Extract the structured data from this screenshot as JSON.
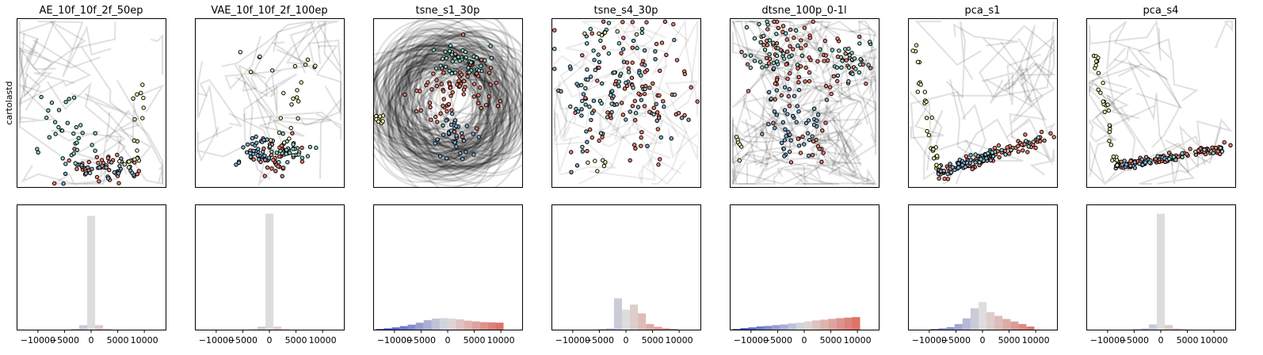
{
  "figure": {
    "row_label": "cartolastd",
    "colors": {
      "yellow": "#ffffb3",
      "teal": "#8dd3c7",
      "red": "#fb8072",
      "blue": "#80b1d3",
      "lavender": "#bebada",
      "trail": "#000000",
      "hist_mid": "#dddddd",
      "hist_blue": "#3b4cc0",
      "hist_red": "#dd5a4e"
    }
  },
  "chart_data": [
    {
      "type": "scatter",
      "title": "AE_10f_10f_2f_50ep",
      "xticks": [],
      "yticks": [],
      "trails": "light",
      "histogram": {
        "type": "bar",
        "bin_centers": [
          -12000,
          -10500,
          -9000,
          -7500,
          -6000,
          -4500,
          -3000,
          -1500,
          0,
          1500,
          3000,
          4500,
          6000,
          7500,
          9000,
          10500,
          12000
        ],
        "values": [
          0,
          0,
          0,
          0,
          0,
          0,
          0.5,
          4,
          100,
          4,
          0.5,
          0,
          0,
          0,
          0,
          0,
          0
        ],
        "xticks": [
          "−10000",
          "−5000",
          "0",
          "5000",
          "10000"
        ],
        "xtick_values": [
          -10000,
          -5000,
          0,
          5000,
          10000
        ],
        "xlim": [
          -14000,
          14000
        ],
        "ylim": [
          0,
          110
        ]
      }
    },
    {
      "type": "scatter",
      "title": "VAE_10f_10f_2f_100ep",
      "xticks": [],
      "yticks": [],
      "trails": "light",
      "histogram": {
        "type": "bar",
        "bin_centers": [
          -12000,
          -10500,
          -9000,
          -7500,
          -6000,
          -4500,
          -3000,
          -1500,
          0,
          1500,
          3000,
          4500,
          6000,
          7500,
          9000,
          10500,
          12000
        ],
        "values": [
          0,
          0,
          0,
          0,
          0,
          0,
          0.3,
          2.5,
          100,
          2.5,
          0.3,
          0,
          0,
          0,
          0,
          0,
          0
        ],
        "xticks": [
          "−10000",
          "−5000",
          "0",
          "5000",
          "10000"
        ],
        "xtick_values": [
          -10000,
          -5000,
          0,
          5000,
          10000
        ],
        "xlim": [
          -14000,
          14000
        ],
        "ylim": [
          0,
          108
        ]
      }
    },
    {
      "type": "scatter",
      "title": "tsne_s1_30p",
      "xticks": [],
      "yticks": [],
      "trails": "heavy",
      "histogram": {
        "type": "bar",
        "bin_centers": [
          -12750,
          -11250,
          -9750,
          -8250,
          -6750,
          -5250,
          -3750,
          -2250,
          -750,
          750,
          2250,
          3750,
          5250,
          6750,
          8250,
          9750
        ],
        "values": [
          0.5,
          1,
          1.8,
          2.8,
          4,
          5.5,
          7.5,
          8.8,
          9.2,
          8.8,
          8.2,
          7.2,
          6.6,
          6,
          5.8,
          5.6
        ],
        "xticks": [
          "−10000",
          "−5000",
          "0",
          "5000",
          "10000"
        ],
        "xtick_values": [
          -10000,
          -5000,
          0,
          5000,
          10000
        ],
        "xlim": [
          -14000,
          14000
        ],
        "ylim": [
          0,
          100
        ]
      }
    },
    {
      "type": "scatter",
      "title": "tsne_s4_30p",
      "xticks": [],
      "yticks": [],
      "trails": "radial",
      "histogram": {
        "type": "bar",
        "bin_centers": [
          -6000,
          -4500,
          -3000,
          -1500,
          0,
          1500,
          3000,
          4500,
          6000,
          7500,
          9000
        ],
        "values": [
          0,
          0.3,
          1,
          25,
          16,
          20,
          13,
          4.5,
          2.2,
          1,
          0.5
        ],
        "xticks": [
          "−10000",
          "−5000",
          "0",
          "5000",
          "10000"
        ],
        "xtick_values": [
          -10000,
          -5000,
          0,
          5000,
          10000
        ],
        "xlim": [
          -14000,
          14000
        ],
        "ylim": [
          0,
          100
        ]
      }
    },
    {
      "type": "scatter",
      "title": "dtsne_100p_0-1l",
      "xticks": [],
      "yticks": [],
      "trails": "medium",
      "histogram": {
        "type": "bar",
        "bin_centers": [
          -12750,
          -11250,
          -9750,
          -8250,
          -6750,
          -5250,
          -3750,
          -2250,
          -750,
          750,
          2250,
          3750,
          5250,
          6750,
          8250,
          9750
        ],
        "values": [
          0.5,
          1.2,
          1.8,
          2.6,
          3,
          3.6,
          4.2,
          5,
          5.6,
          6.6,
          7.4,
          8,
          8.6,
          9.2,
          9.6,
          10
        ],
        "xticks": [
          "−10000",
          "−5000",
          "0",
          "5000",
          "10000"
        ],
        "xtick_values": [
          -10000,
          -5000,
          0,
          5000,
          10000
        ],
        "xlim": [
          -14000,
          14000
        ],
        "ylim": [
          0,
          100
        ]
      }
    },
    {
      "type": "scatter",
      "title": "pca_s1",
      "xticks": [],
      "yticks": [],
      "trails": "pca",
      "histogram": {
        "type": "bar",
        "bin_centers": [
          -9000,
          -7500,
          -6000,
          -4500,
          -3000,
          -1500,
          0,
          1500,
          3000,
          4500,
          6000,
          7500,
          9000
        ],
        "values": [
          0.5,
          1,
          2,
          4.5,
          9,
          17,
          22,
          14,
          11,
          8.5,
          6.5,
          4.5,
          2.5
        ],
        "xticks": [
          "−10000",
          "−5000",
          "0",
          "5000",
          "10000"
        ],
        "xtick_values": [
          -10000,
          -5000,
          0,
          5000,
          10000
        ],
        "xlim": [
          -14000,
          14000
        ],
        "ylim": [
          0,
          100
        ]
      }
    },
    {
      "type": "scatter",
      "title": "pca_s4",
      "xticks": [],
      "yticks": [],
      "trails": "pca-light",
      "histogram": {
        "type": "bar",
        "bin_centers": [
          -6000,
          -4500,
          -3000,
          -1500,
          0,
          1500,
          3000,
          4500,
          6000
        ],
        "values": [
          0,
          0.3,
          1,
          4.5,
          100,
          4,
          1,
          0.3,
          0
        ],
        "xticks": [
          "−10000",
          "−5000",
          "0",
          "5000",
          "10000"
        ],
        "xtick_values": [
          -10000,
          -5000,
          0,
          5000,
          10000
        ],
        "xlim": [
          -14000,
          14000
        ],
        "ylim": [
          0,
          108
        ]
      }
    }
  ]
}
